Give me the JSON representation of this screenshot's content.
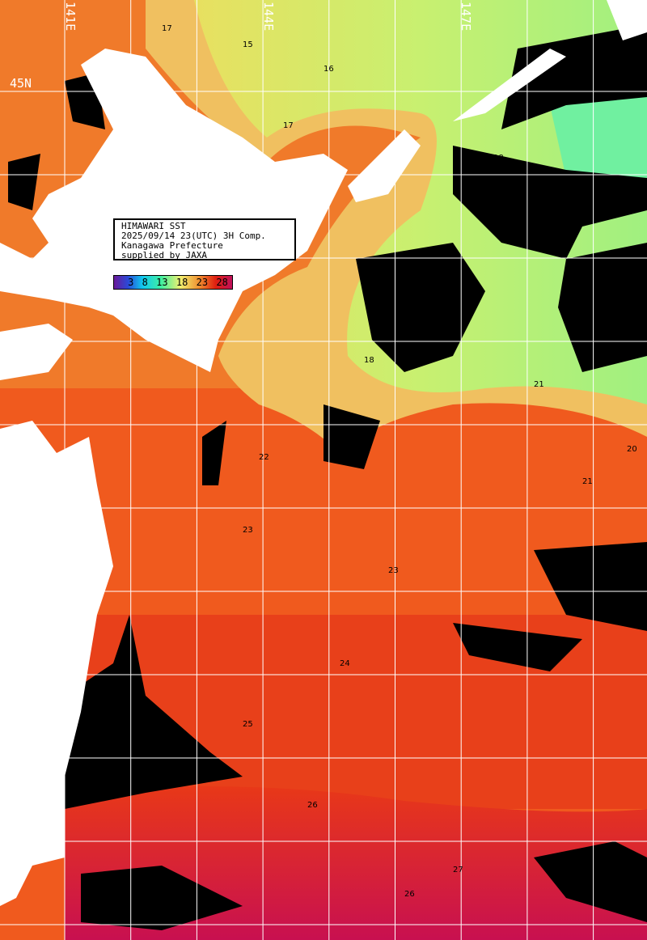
{
  "info_box": {
    "lines": [
      "HIMAWARI SST",
      "2025/09/14 23(UTC) 3H Comp.",
      "Kanagawa Prefecture",
      "supplied by JAXA"
    ]
  },
  "color_scale": {
    "unit_ticks": [
      "3",
      "8",
      "13",
      "18",
      "23",
      "28"
    ],
    "colors": [
      "#6a1a9a",
      "#2a4ad8",
      "#10c8f0",
      "#40f0a0",
      "#f0f070",
      "#f09030",
      "#e02010",
      "#c0105a"
    ]
  },
  "grid_labels": {
    "lon": [
      "141E",
      "144E",
      "147E"
    ],
    "lat": [
      "45N"
    ]
  },
  "contour_labels": [
    "15",
    "16",
    "17",
    "18",
    "20",
    "21",
    "22",
    "23",
    "24",
    "25",
    "26",
    "27"
  ],
  "colors": {
    "land": "#ffffff",
    "cloud": "#000000",
    "grid": "#ffffff"
  }
}
